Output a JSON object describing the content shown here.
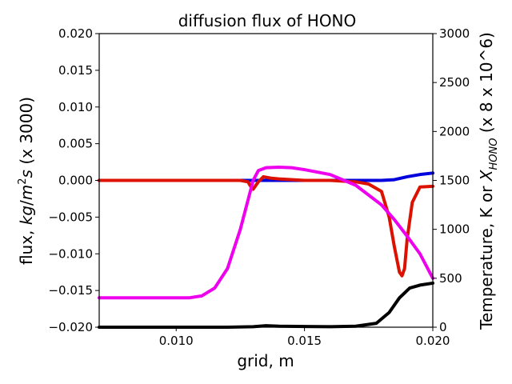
{
  "chart_data": {
    "type": "line",
    "title": "diffusion flux of HONO",
    "xlabel": "grid, m",
    "ylabel_left": "flux, kg/m^2s (x 3000)",
    "ylabel_right": "Temperature, K or X_HONO (x 8 x 10^6)",
    "xlim": [
      0.007,
      0.02
    ],
    "ylim_left": [
      -0.02,
      0.02
    ],
    "ylim_right": [
      0,
      3000
    ],
    "x_ticks": [
      "0.010",
      "0.015",
      "0.020"
    ],
    "x_tick_values": [
      0.01,
      0.015,
      0.02
    ],
    "y_left_ticks": [
      "0.020",
      "0.015",
      "0.010",
      "0.005",
      "0.000",
      "−0.005",
      "−0.010",
      "−0.015",
      "−0.020"
    ],
    "y_left_tick_values": [
      0.02,
      0.015,
      0.01,
      0.005,
      0.0,
      -0.005,
      -0.01,
      -0.015,
      -0.02
    ],
    "y_right_ticks": [
      "3000",
      "2500",
      "2000",
      "1500",
      "1000",
      "500",
      "0"
    ],
    "y_right_tick_values": [
      3000,
      2500,
      2000,
      1500,
      1000,
      500,
      0
    ],
    "grid": false,
    "series": [
      {
        "color": "#0000dd",
        "axis": "left",
        "x": [
          0.007,
          0.012,
          0.0125,
          0.0128,
          0.013,
          0.0133,
          0.0137,
          0.014,
          0.017,
          0.018,
          0.0185,
          0.019,
          0.0195,
          0.02
        ],
        "y": [
          0.0,
          0.0,
          0.0,
          0.0,
          0.0,
          0.0,
          0.0,
          0.0,
          0.0,
          0.0,
          0.0001,
          0.0005,
          0.0008,
          0.001
        ]
      },
      {
        "color": "#dd1100",
        "axis": "left",
        "x": [
          0.007,
          0.012,
          0.0125,
          0.0128,
          0.0129,
          0.013,
          0.0132,
          0.0134,
          0.0137,
          0.014,
          0.015,
          0.016,
          0.017,
          0.0175,
          0.018,
          0.0183,
          0.0185,
          0.0187,
          0.0188,
          0.0189,
          0.019,
          0.0192,
          0.0195,
          0.02
        ],
        "y": [
          0.0,
          0.0,
          0.0,
          -0.0002,
          -0.0008,
          -0.0012,
          -0.0002,
          0.0005,
          0.0003,
          0.0002,
          0.0,
          0.0,
          -0.0002,
          -0.0005,
          -0.0015,
          -0.005,
          -0.009,
          -0.0125,
          -0.013,
          -0.012,
          -0.008,
          -0.003,
          -0.0009,
          -0.0008
        ]
      },
      {
        "color": "#ee00ee",
        "axis": "right",
        "x": [
          0.007,
          0.0105,
          0.011,
          0.0115,
          0.012,
          0.0125,
          0.0128,
          0.013,
          0.0132,
          0.0135,
          0.014,
          0.0145,
          0.015,
          0.016,
          0.017,
          0.018,
          0.0185,
          0.019,
          0.0195,
          0.02
        ],
        "y": [
          300,
          300,
          320,
          400,
          600,
          1000,
          1300,
          1500,
          1600,
          1630,
          1635,
          1630,
          1610,
          1560,
          1450,
          1250,
          1100,
          930,
          750,
          500
        ]
      },
      {
        "color": "#000000",
        "axis": "right",
        "x": [
          0.007,
          0.012,
          0.013,
          0.0135,
          0.014,
          0.016,
          0.017,
          0.0178,
          0.0183,
          0.0187,
          0.0191,
          0.0195,
          0.02
        ],
        "y": [
          0,
          0,
          5,
          15,
          10,
          5,
          10,
          40,
          150,
          300,
          400,
          430,
          450
        ]
      }
    ]
  }
}
